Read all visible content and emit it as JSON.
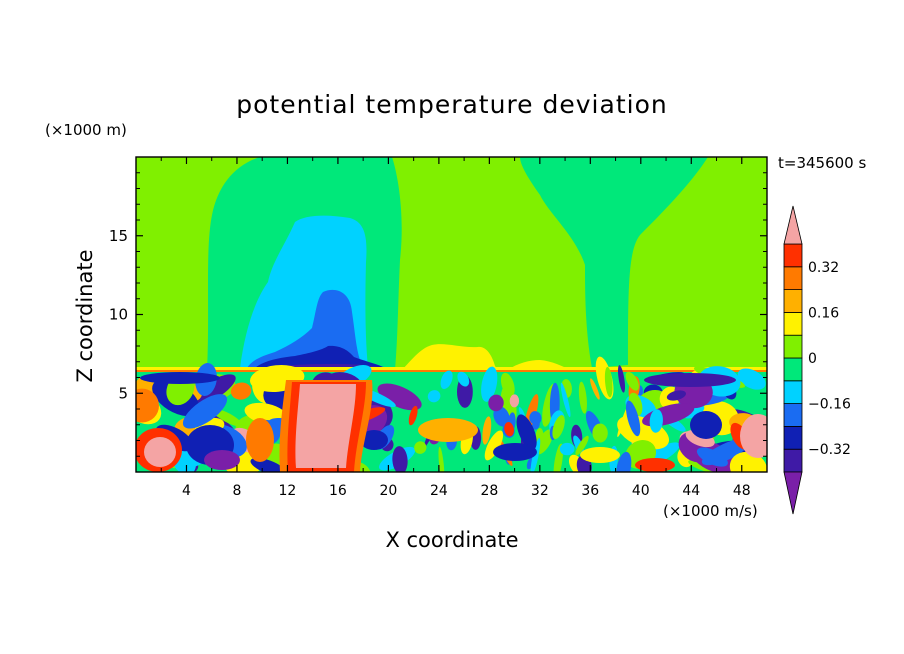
{
  "chart_data": {
    "type": "heatmap",
    "title": "potential temperature deviation",
    "xlabel": "X coordinate",
    "ylabel": "Z coordinate",
    "x_unit": "(×1000 m/s)",
    "y_unit": "(×1000 m)",
    "time_label": "t=345600 s",
    "xlim": [
      0,
      50
    ],
    "ylim": [
      0,
      20
    ],
    "x_ticks": [
      "4",
      "8",
      "12",
      "16",
      "20",
      "24",
      "28",
      "32",
      "36",
      "40",
      "44",
      "48"
    ],
    "y_ticks": [
      "5",
      "10",
      "15"
    ],
    "colorbar": {
      "levels": [
        -0.4,
        -0.32,
        -0.24,
        -0.16,
        -0.08,
        0,
        0.08,
        0.16,
        0.24,
        0.32,
        0.4
      ],
      "labels": [
        "0.32",
        "0.16",
        "0",
        "−0.16",
        "−0.32"
      ],
      "colors": [
        "#7a1fa8",
        "#3f1aa6",
        "#1020b4",
        "#1a6cf2",
        "#00d2ff",
        "#00e87a",
        "#80f000",
        "#fff200",
        "#ffb000",
        "#ff7a00",
        "#ff3000",
        "#f4a4a4"
      ]
    },
    "field_description": {
      "boundary_layer_top": 6.5,
      "background_value": 0.04
    }
  },
  "colors": {
    "background": "#ffffff",
    "axis": "#000000",
    "field_base": "#80f000"
  }
}
